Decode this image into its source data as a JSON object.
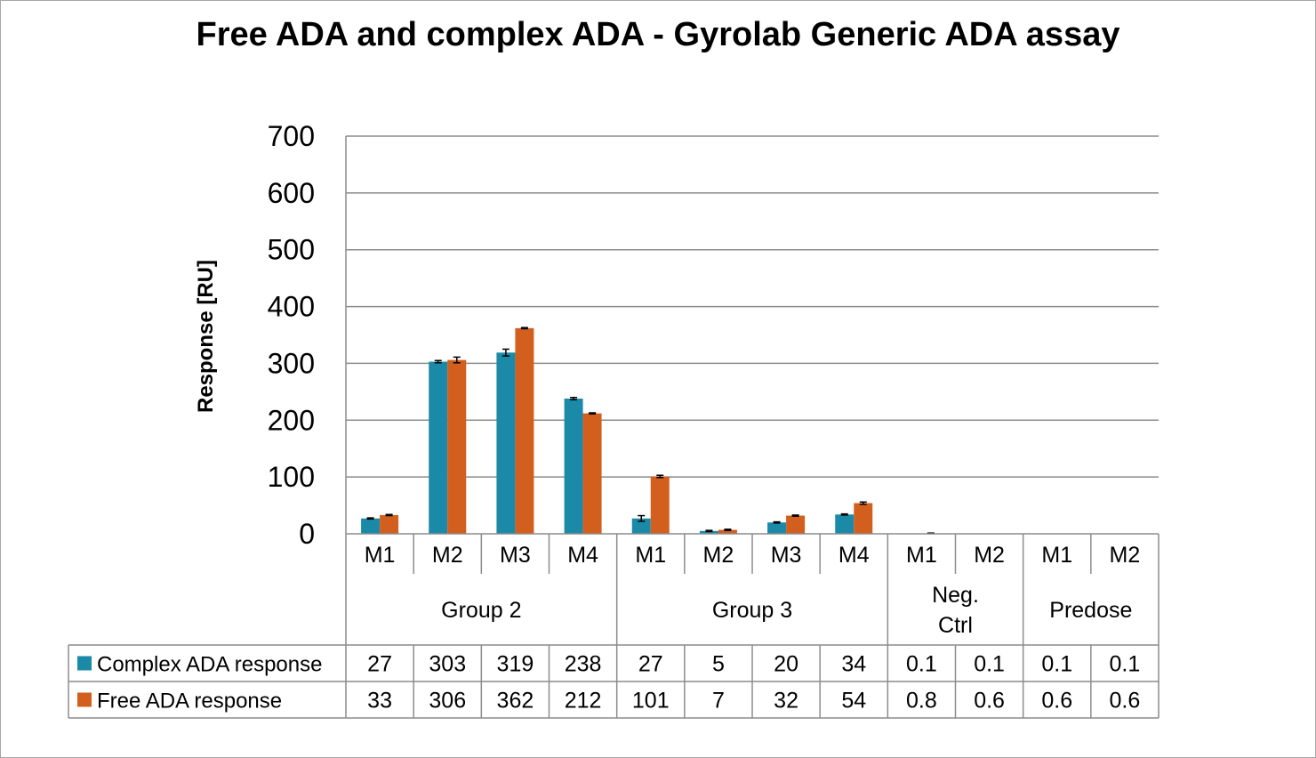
{
  "chart_data": {
    "type": "bar",
    "title": "Free ADA and complex ADA - Gyrolab Generic ADA assay",
    "xlabel": "",
    "ylabel": "Response [RU]",
    "ylim": [
      0,
      700
    ],
    "yticks": [
      "0",
      "100",
      "200",
      "300",
      "400",
      "500",
      "600",
      "700"
    ],
    "grid": true,
    "legend": "data-table-left",
    "error_bars": true,
    "categories": [
      "M1",
      "M2",
      "M3",
      "M4",
      "M1",
      "M2",
      "M3",
      "M4",
      "M1",
      "M2",
      "M1",
      "M2"
    ],
    "groups": [
      {
        "label": "Group 2",
        "lines": [
          "Group 2"
        ],
        "span": 4
      },
      {
        "label": "Group 3",
        "lines": [
          "Group 3"
        ],
        "span": 4
      },
      {
        "label": "Neg. Ctrl",
        "lines": [
          "Neg.",
          "Ctrl"
        ],
        "span": 2
      },
      {
        "label": "Predose",
        "lines": [
          "Predose"
        ],
        "span": 2
      }
    ],
    "series": [
      {
        "name": "Complex ADA response",
        "color": "#1a8aa8",
        "values": [
          27,
          303,
          319,
          238,
          27,
          5,
          20,
          34,
          0.1,
          0.1,
          0.1,
          0.1
        ],
        "labels": [
          "27",
          "303",
          "319",
          "238",
          "27",
          "5",
          "20",
          "34",
          "0.1",
          "0.1",
          "0.1",
          "0.1"
        ],
        "errors": [
          1,
          2,
          6,
          2,
          5,
          1,
          1,
          1,
          0,
          0,
          0,
          0
        ]
      },
      {
        "name": "Free ADA response",
        "color": "#d35f1f",
        "values": [
          33,
          306,
          362,
          212,
          101,
          7,
          32,
          54,
          0.8,
          0.6,
          0.6,
          0.6
        ],
        "labels": [
          "33",
          "306",
          "362",
          "212",
          "101",
          "7",
          "32",
          "54",
          "0.8",
          "0.6",
          "0.6",
          "0.6"
        ],
        "errors": [
          1,
          5,
          1,
          1,
          2,
          1,
          1,
          2,
          0.5,
          0,
          0,
          0
        ]
      }
    ]
  }
}
